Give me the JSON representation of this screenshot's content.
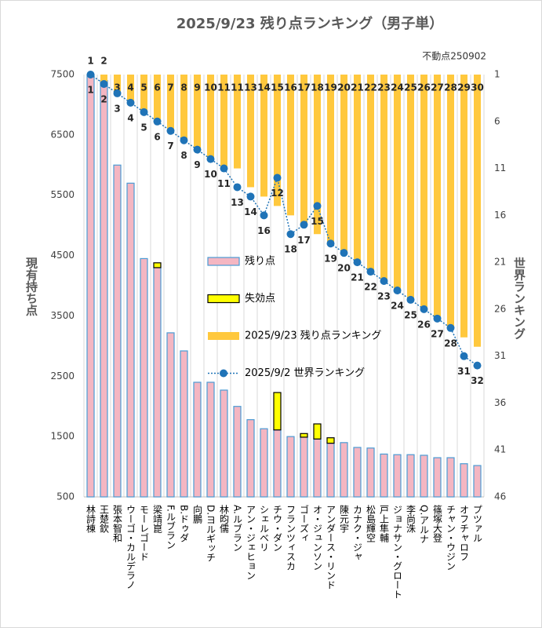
{
  "chart_data": {
    "type": "combo",
    "title": "2025/9/23 残り点ランキング（男子単）",
    "subtitle": "不動点250902",
    "y_label": "現有持ち点",
    "y2_label": "世界ランキング",
    "categories": [
      "林詩棟",
      "王楚欽",
      "張本智和",
      "ウーゴ・カルデラノ",
      "モーレゴード",
      "梁靖崑",
      "F.ルブラン",
      "B.ドゥダ",
      "向鵬",
      "D.ヨルギッチ",
      "林昀儒",
      "A.ルブラン",
      "アン・ジェヒョン",
      "シェルベリ",
      "チウ・ダン",
      "フランツィスカ",
      "ゴーズィ",
      "オ・ジュンソン",
      "アンダース・リンド",
      "陳元宇",
      "カナク・ジャ",
      "松島輝空",
      "戸上隼輔",
      "ジョナサン・グロート",
      "李尚洙",
      "Q.アルナ",
      "篠塚大登",
      "チャン・ウジン",
      "オフチャロフ",
      "プツァル"
    ],
    "series": [
      {
        "name": "残り点",
        "type": "bar",
        "color": "#f4b6c2",
        "edge": "#4a9bd4",
        "values": [
          7500,
          7400,
          6000,
          5700,
          4450,
          4300,
          3220,
          2920,
          2400,
          2400,
          2270,
          2000,
          1780,
          1630,
          1610,
          1500,
          1490,
          1460,
          1390,
          1400,
          1320,
          1310,
          1210,
          1200,
          1200,
          1190,
          1150,
          1150,
          1050,
          1020
        ]
      },
      {
        "name": "失効点",
        "type": "stacked",
        "color": "#ffff00",
        "edge": "#000000",
        "values": [
          null,
          null,
          null,
          null,
          null,
          80,
          null,
          null,
          null,
          null,
          null,
          null,
          null,
          null,
          620,
          null,
          60,
          250,
          90,
          null,
          null,
          null,
          null,
          null,
          null,
          null,
          null,
          null,
          null,
          null
        ]
      },
      {
        "name": "2025/9/23 残り点ランキング",
        "type": "hanging",
        "axis": "y2",
        "color": "#ffc83d",
        "values": [
          1,
          2,
          3,
          4,
          5,
          6,
          7,
          8,
          9,
          10,
          11,
          11,
          13,
          14,
          15,
          16,
          17,
          18,
          19,
          20,
          21,
          22,
          23,
          24,
          25,
          26,
          27,
          28,
          29,
          30
        ]
      },
      {
        "name": "2025/9/2 世界ランキング",
        "type": "line",
        "axis": "y2",
        "color": "#1f73b7",
        "values": [
          1,
          2,
          3,
          4,
          5,
          6,
          7,
          8,
          9,
          10,
          11,
          13,
          14,
          16,
          12,
          18,
          17,
          15,
          19,
          20,
          21,
          22,
          23,
          24,
          25,
          26,
          27,
          28,
          31,
          32
        ]
      }
    ],
    "ylim": [
      500,
      7500
    ],
    "yticks": [
      500,
      1500,
      2500,
      3500,
      4500,
      5500,
      6500,
      7500
    ],
    "y2lim": [
      46,
      1
    ],
    "y2ticks": [
      1,
      6,
      11,
      16,
      21,
      26,
      31,
      36,
      41,
      46
    ],
    "grid": "x",
    "legend": "center",
    "data_labels": true
  }
}
